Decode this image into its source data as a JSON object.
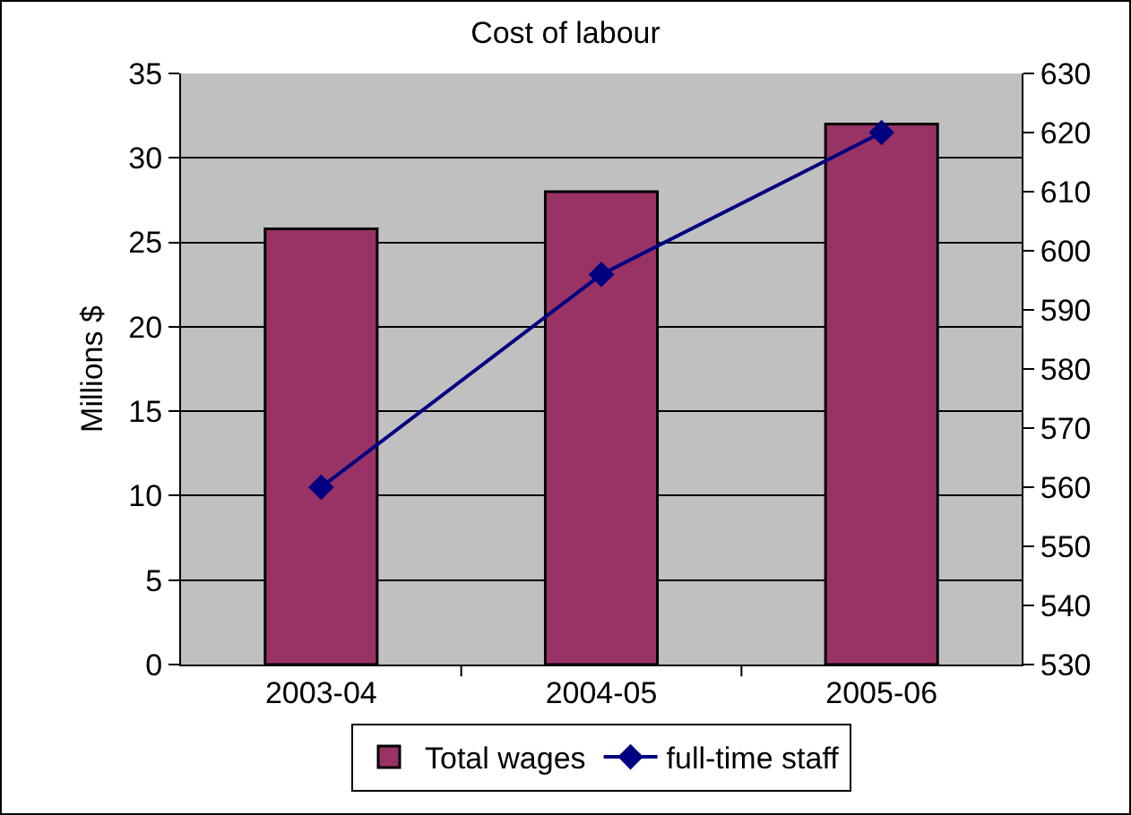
{
  "chart_data": {
    "type": "bar",
    "title": "Cost of labour",
    "ylabel": "Millions $",
    "categories": [
      "2003-04",
      "2004-05",
      "2005-06"
    ],
    "series": [
      {
        "name": "Total wages",
        "color": "#993366",
        "values": [
          25.8,
          28,
          32
        ]
      },
      {
        "name": "full-time staff",
        "type": "line",
        "axis": "y2",
        "color": "#000080",
        "marker": "diamond",
        "values": [
          560,
          596,
          620
        ]
      }
    ],
    "ylim": [
      0,
      35
    ],
    "yticks": [
      0,
      5,
      10,
      15,
      20,
      25,
      30,
      35
    ],
    "y2lim": [
      530,
      630
    ],
    "y2ticks": [
      530,
      540,
      550,
      560,
      570,
      580,
      590,
      600,
      610,
      620,
      630
    ],
    "grid": "y",
    "legend": "bottom"
  }
}
